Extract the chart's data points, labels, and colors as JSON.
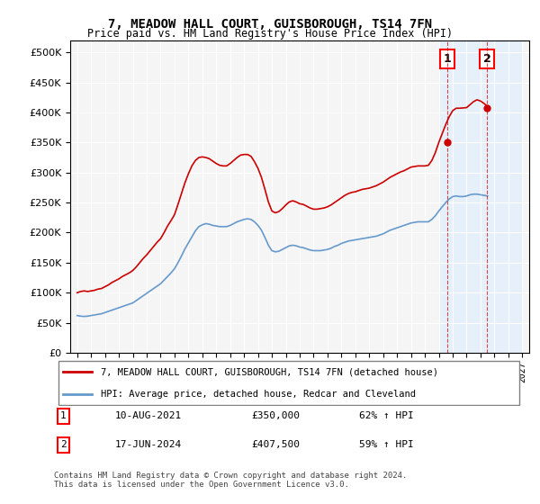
{
  "title": "7, MEADOW HALL COURT, GUISBOROUGH, TS14 7FN",
  "subtitle": "Price paid vs. HM Land Registry's House Price Index (HPI)",
  "legend_line1": "7, MEADOW HALL COURT, GUISBOROUGH, TS14 7FN (detached house)",
  "legend_line2": "HPI: Average price, detached house, Redcar and Cleveland",
  "annotation1_label": "1",
  "annotation1_date": "10-AUG-2021",
  "annotation1_price": "£350,000",
  "annotation1_hpi": "62% ↑ HPI",
  "annotation2_label": "2",
  "annotation2_date": "17-JUN-2024",
  "annotation2_price": "£407,500",
  "annotation2_hpi": "59% ↑ HPI",
  "footer": "Contains HM Land Registry data © Crown copyright and database right 2024.\nThis data is licensed under the Open Government Licence v3.0.",
  "red_color": "#cc0000",
  "blue_color": "#6699cc",
  "shade_color": "#ddeeff",
  "background_color": "#f5f5f5",
  "ylim": [
    0,
    520000
  ],
  "yticks": [
    0,
    50000,
    100000,
    150000,
    200000,
    250000,
    300000,
    350000,
    400000,
    450000,
    500000
  ],
  "hpi_data": {
    "dates": [
      1995.0,
      1995.25,
      1995.5,
      1995.75,
      1996.0,
      1996.25,
      1996.5,
      1996.75,
      1997.0,
      1997.25,
      1997.5,
      1997.75,
      1998.0,
      1998.25,
      1998.5,
      1998.75,
      1999.0,
      1999.25,
      1999.5,
      1999.75,
      2000.0,
      2000.25,
      2000.5,
      2000.75,
      2001.0,
      2001.25,
      2001.5,
      2001.75,
      2002.0,
      2002.25,
      2002.5,
      2002.75,
      2003.0,
      2003.25,
      2003.5,
      2003.75,
      2004.0,
      2004.25,
      2004.5,
      2004.75,
      2005.0,
      2005.25,
      2005.5,
      2005.75,
      2006.0,
      2006.25,
      2006.5,
      2006.75,
      2007.0,
      2007.25,
      2007.5,
      2007.75,
      2008.0,
      2008.25,
      2008.5,
      2008.75,
      2009.0,
      2009.25,
      2009.5,
      2009.75,
      2010.0,
      2010.25,
      2010.5,
      2010.75,
      2011.0,
      2011.25,
      2011.5,
      2011.75,
      2012.0,
      2012.25,
      2012.5,
      2012.75,
      2013.0,
      2013.25,
      2013.5,
      2013.75,
      2014.0,
      2014.25,
      2014.5,
      2014.75,
      2015.0,
      2015.25,
      2015.5,
      2015.75,
      2016.0,
      2016.25,
      2016.5,
      2016.75,
      2017.0,
      2017.25,
      2017.5,
      2017.75,
      2018.0,
      2018.25,
      2018.5,
      2018.75,
      2019.0,
      2019.25,
      2019.5,
      2019.75,
      2020.0,
      2020.25,
      2020.5,
      2020.75,
      2021.0,
      2021.25,
      2021.5,
      2021.75,
      2022.0,
      2022.25,
      2022.5,
      2022.75,
      2023.0,
      2023.25,
      2023.5,
      2023.75,
      2024.0,
      2024.25,
      2024.5
    ],
    "values": [
      62000,
      61000,
      60500,
      61000,
      62000,
      63000,
      64000,
      65000,
      67000,
      69000,
      71000,
      73000,
      75000,
      77000,
      79000,
      81000,
      83000,
      87000,
      91000,
      95000,
      99000,
      103000,
      107000,
      111000,
      115000,
      121000,
      127000,
      133000,
      140000,
      150000,
      161000,
      173000,
      183000,
      193000,
      203000,
      210000,
      213000,
      215000,
      214000,
      212000,
      211000,
      210000,
      210000,
      210000,
      212000,
      215000,
      218000,
      220000,
      222000,
      223000,
      222000,
      218000,
      212000,
      204000,
      192000,
      179000,
      170000,
      168000,
      169000,
      172000,
      175000,
      178000,
      179000,
      178000,
      176000,
      175000,
      173000,
      171000,
      170000,
      170000,
      170000,
      171000,
      172000,
      174000,
      177000,
      179000,
      182000,
      184000,
      186000,
      187000,
      188000,
      189000,
      190000,
      191000,
      192000,
      193000,
      194000,
      196000,
      198000,
      201000,
      204000,
      206000,
      208000,
      210000,
      212000,
      214000,
      216000,
      217000,
      218000,
      218000,
      218000,
      218000,
      222000,
      228000,
      236000,
      243000,
      250000,
      256000,
      260000,
      261000,
      260000,
      260000,
      261000,
      263000,
      264000,
      264000,
      263000,
      262000,
      261000
    ]
  },
  "price_data": {
    "dates": [
      1995.0,
      1995.25,
      1995.5,
      1995.75,
      1996.0,
      1996.25,
      1996.5,
      1996.75,
      1997.0,
      1997.25,
      1997.5,
      1997.75,
      1998.0,
      1998.25,
      1998.5,
      1998.75,
      1999.0,
      1999.25,
      1999.5,
      1999.75,
      2000.0,
      2000.25,
      2000.5,
      2000.75,
      2001.0,
      2001.25,
      2001.5,
      2001.75,
      2002.0,
      2002.25,
      2002.5,
      2002.75,
      2003.0,
      2003.25,
      2003.5,
      2003.75,
      2004.0,
      2004.25,
      2004.5,
      2004.75,
      2005.0,
      2005.25,
      2005.5,
      2005.75,
      2006.0,
      2006.25,
      2006.5,
      2006.75,
      2007.0,
      2007.25,
      2007.5,
      2007.75,
      2008.0,
      2008.25,
      2008.5,
      2008.75,
      2009.0,
      2009.25,
      2009.5,
      2009.75,
      2010.0,
      2010.25,
      2010.5,
      2010.75,
      2011.0,
      2011.25,
      2011.5,
      2011.75,
      2012.0,
      2012.25,
      2012.5,
      2012.75,
      2013.0,
      2013.25,
      2013.5,
      2013.75,
      2014.0,
      2014.25,
      2014.5,
      2014.75,
      2015.0,
      2015.25,
      2015.5,
      2015.75,
      2016.0,
      2016.25,
      2016.5,
      2016.75,
      2017.0,
      2017.25,
      2017.5,
      2017.75,
      2018.0,
      2018.25,
      2018.5,
      2018.75,
      2019.0,
      2019.25,
      2019.5,
      2019.75,
      2020.0,
      2020.25,
      2020.5,
      2020.75,
      2021.0,
      2021.25,
      2021.5,
      2021.75,
      2022.0,
      2022.25,
      2022.5,
      2022.75,
      2023.0,
      2023.25,
      2023.5,
      2023.75,
      2024.0,
      2024.25,
      2024.5
    ],
    "values": [
      100000,
      102000,
      103000,
      102000,
      103000,
      104000,
      106000,
      107000,
      110000,
      113000,
      117000,
      120000,
      123000,
      127000,
      130000,
      133000,
      137000,
      143000,
      150000,
      157000,
      163000,
      170000,
      177000,
      184000,
      190000,
      200000,
      211000,
      220000,
      230000,
      247000,
      265000,
      283000,
      298000,
      311000,
      320000,
      325000,
      326000,
      325000,
      323000,
      319000,
      315000,
      312000,
      311000,
      311000,
      315000,
      320000,
      325000,
      329000,
      330000,
      330000,
      327000,
      318000,
      307000,
      292000,
      272000,
      251000,
      236000,
      233000,
      235000,
      240000,
      246000,
      251000,
      253000,
      251000,
      248000,
      247000,
      244000,
      241000,
      239000,
      239000,
      240000,
      241000,
      243000,
      246000,
      250000,
      254000,
      258000,
      262000,
      265000,
      267000,
      268000,
      270000,
      272000,
      273000,
      274000,
      276000,
      278000,
      281000,
      284000,
      288000,
      292000,
      295000,
      298000,
      301000,
      303000,
      306000,
      309000,
      310000,
      311000,
      311000,
      311000,
      312000,
      320000,
      333000,
      350000,
      365000,
      380000,
      393000,
      403000,
      407000,
      407000,
      407500,
      408000,
      413000,
      418000,
      421000,
      419000,
      415000,
      410000
    ]
  },
  "sale1_x": 2021.6,
  "sale1_y": 350000,
  "sale2_x": 2024.46,
  "sale2_y": 407500,
  "xtick_start": 1995,
  "xtick_end": 2027,
  "xtick_step": 1,
  "shade_start": 2021.0,
  "shade_end": 2027.0
}
